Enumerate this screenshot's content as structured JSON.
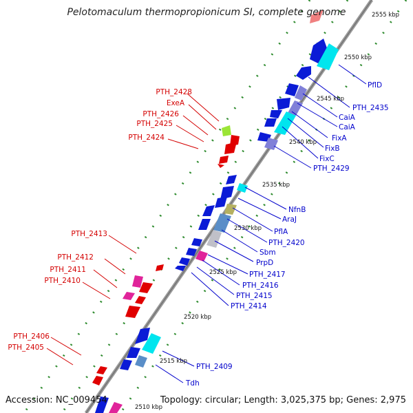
{
  "title": "Pelotomaculum thermopropionicum SI, complete genome",
  "footer": {
    "accession": "Accession: NC_009454",
    "summary": "Topology: circular; Length: 3,025,375 bp; Genes: 2,975"
  },
  "colors": {
    "backbone": "#888888",
    "tick": "#2e8b2e",
    "forward_label": "#d40000",
    "reverse_label": "#0000cc"
  },
  "scale_labels": [
    "2510 kbp",
    "2515 kbp",
    "2520 kbp",
    "2525 kbp",
    "2530 kbp",
    "2535 kbp",
    "2540 kbp",
    "2545 kbp",
    "2550 kbp",
    "2555 kbp"
  ],
  "forward_gene_labels": [
    "PTH_2428",
    "ExeA",
    "PTH_2426",
    "PTH_2425",
    "PTH_2424",
    "PTH_2413",
    "PTH_2412",
    "PTH_2411",
    "PTH_2410",
    "PTH_2406",
    "PTH_2405"
  ],
  "reverse_gene_labels": [
    "PflD",
    "PTH_2435",
    "CaiA",
    "CaiA",
    "FixA",
    "FixB",
    "FixC",
    "PTH_2429",
    "NfnB",
    "AraJ",
    "PflA",
    "PTH_2420",
    "Sbm",
    "PrpD",
    "PTH_2417",
    "PTH_2416",
    "PTH_2415",
    "PTH_2414",
    "PTH_2409",
    "Tdh"
  ]
}
